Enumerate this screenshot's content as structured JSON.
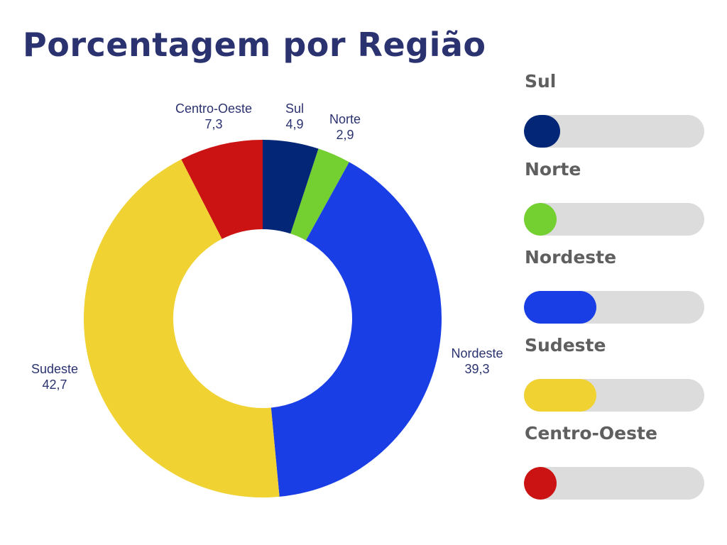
{
  "chart_data": {
    "type": "pie",
    "title": "Porcentagem por Região",
    "categories": [
      "Sul",
      "Norte",
      "Nordeste",
      "Sudeste",
      "Centro-Oeste"
    ],
    "values": [
      4.9,
      2.9,
      39.3,
      42.7,
      7.3
    ],
    "value_labels": [
      "4,9",
      "2,9",
      "39,3",
      "42,7",
      "7,3"
    ],
    "colors": [
      "#032776",
      "#74cf31",
      "#1a3ee6",
      "#f0d232",
      "#cc1313"
    ],
    "donut": true
  },
  "legend": {
    "items": [
      {
        "label": "Sul",
        "color": "#032776",
        "fill": 0.2
      },
      {
        "label": "Norte",
        "color": "#74cf31",
        "fill": 0.18
      },
      {
        "label": "Nordeste",
        "color": "#1a3ee6",
        "fill": 0.4
      },
      {
        "label": "Sudeste",
        "color": "#f0d232",
        "fill": 0.4
      },
      {
        "label": "Centro-Oeste",
        "color": "#cc1313",
        "fill": 0.18
      }
    ]
  }
}
